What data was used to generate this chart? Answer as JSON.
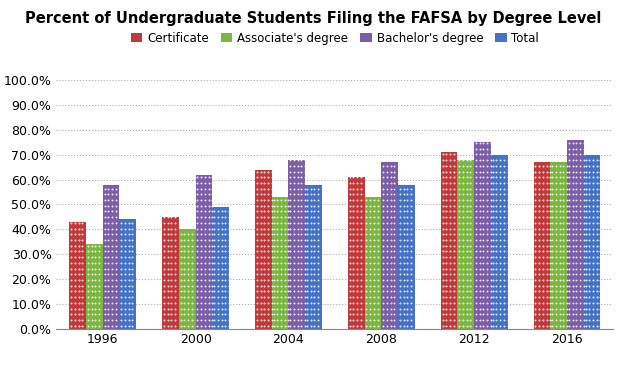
{
  "title": "Percent of Undergraduate Students Filing the FAFSA by Degree Level",
  "years": [
    1996,
    2000,
    2004,
    2008,
    2012,
    2016
  ],
  "series": {
    "Certificate": [
      0.43,
      0.45,
      0.64,
      0.61,
      0.71,
      0.67
    ],
    "Associate's degree": [
      0.34,
      0.4,
      0.53,
      0.53,
      0.68,
      0.67
    ],
    "Bachelor's degree": [
      0.58,
      0.62,
      0.68,
      0.67,
      0.75,
      0.76
    ],
    "Total": [
      0.44,
      0.49,
      0.58,
      0.58,
      0.7,
      0.7
    ]
  },
  "colors": {
    "Certificate": "#C0393B",
    "Associate's degree": "#7CB642",
    "Bachelor's degree": "#7B5EA7",
    "Total": "#4472C4"
  },
  "ylim": [
    0.0,
    1.0
  ],
  "yticks": [
    0.0,
    0.1,
    0.2,
    0.3,
    0.4,
    0.5,
    0.6,
    0.7,
    0.8,
    0.9,
    1.0
  ],
  "bar_width": 0.18,
  "background_color": "#FFFFFF",
  "grid_color": "#AAAAAA",
  "legend_labels": [
    "Certificate",
    "Associate's degree",
    "Bachelor's degree",
    "Total"
  ]
}
